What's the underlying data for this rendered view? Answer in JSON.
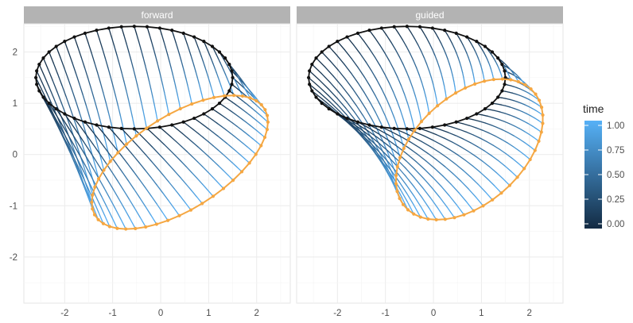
{
  "chart_data": {
    "type": "line",
    "title": "",
    "xlabel": "",
    "ylabel": "",
    "xlim": [
      -2.85,
      2.7
    ],
    "ylim": [
      -2.9,
      2.55
    ],
    "x_ticks": [
      -2,
      -1,
      0,
      1,
      2
    ],
    "y_ticks": [
      2,
      1,
      0,
      -1,
      -2
    ],
    "grid": true,
    "legend": {
      "title": "time",
      "placement": "right",
      "ticks": [
        "1.00",
        "0.75",
        "0.50",
        "0.25",
        "0.00"
      ],
      "tick_values": [
        1.0,
        0.75,
        0.5,
        0.25,
        0.0
      ],
      "colors": {
        "low": "#132b43",
        "high": "#56b1f7"
      }
    },
    "colors": {
      "start_points": "#111111",
      "end_points": "#f5a742",
      "strip_bg": "#b3b3b3",
      "strip_text": "#ffffff"
    },
    "panels": [
      {
        "name": "forward",
        "start_ellipse": {
          "cx": -0.55,
          "cy": 1.5,
          "rx": 2.05,
          "ry": 1.0,
          "rotation_deg": 0,
          "n_points": 48
        },
        "end_ellipse": {
          "cx": 0.4,
          "cy": -0.15,
          "rx": 2.05,
          "ry": 0.93,
          "rotation_deg": 30
        },
        "path_bend": 0.03
      },
      {
        "name": "guided",
        "start_ellipse": {
          "cx": -0.55,
          "cy": 1.5,
          "rx": 2.05,
          "ry": 1.0,
          "rotation_deg": 0,
          "n_points": 48
        },
        "end_ellipse": {
          "cx": 0.75,
          "cy": 0.1,
          "rx": 1.75,
          "ry": 1.08,
          "rotation_deg": 38
        },
        "path_bend": 0.12
      }
    ]
  }
}
